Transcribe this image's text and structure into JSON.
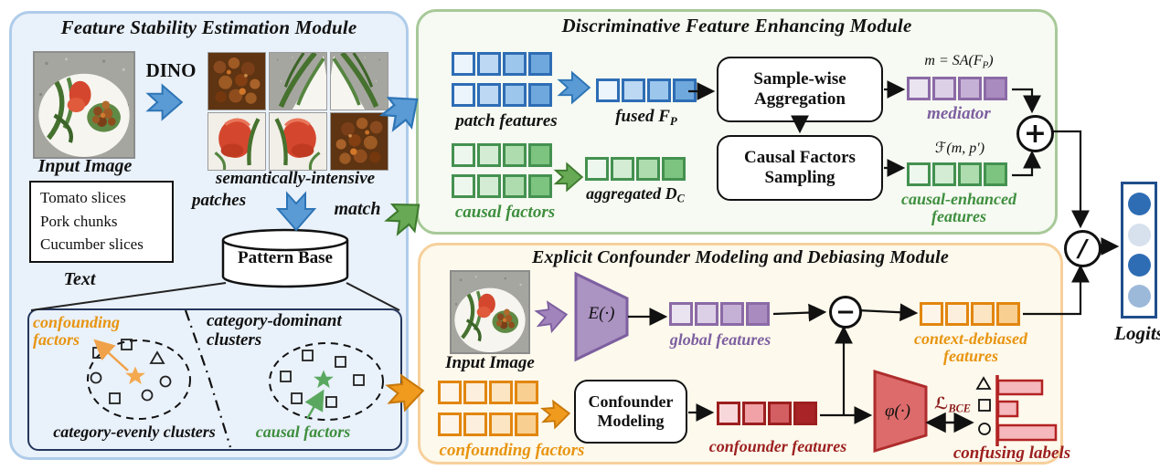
{
  "colors": {
    "module_blue_fill": "#e9f1fa",
    "module_blue_border": "#afccea",
    "module_green_fill": "#f6faf2",
    "module_green_border": "#a8c999",
    "module_cream_fill": "#fdf9ec",
    "module_cream_border": "#f7d09c",
    "arrow_blue": "#5b9bd5",
    "arrow_green": "#67a954",
    "arrow_orange": "#f09a1e",
    "arrow_purple": "#a184bb",
    "label_orange": "#e8940f",
    "label_green": "#3e8e3e",
    "label_purple": "#7d5fa0",
    "label_darkred": "#9c1f1f",
    "bar_fill": "#f5b8bc",
    "bar_border": "#b22222",
    "logits_border": "#1f4e8c"
  },
  "palettes": {
    "blue": {
      "border": "#2e6db5",
      "cells": [
        "#ecf4fc",
        "#bcd8f2",
        "#9cc6ec",
        "#6fa8dc"
      ]
    },
    "green": {
      "border": "#449150",
      "cells": [
        "#eef7ee",
        "#d3ecd3",
        "#aedcae",
        "#7cc47f"
      ]
    },
    "purple": {
      "border": "#8b6aa6",
      "cells": [
        "#eae4f0",
        "#dcd0e6",
        "#c5b1d5",
        "#a98bc0"
      ]
    },
    "orange": {
      "border": "#e2860f",
      "cells": [
        "#fdf5ea",
        "#fcefdd",
        "#fbe5c2",
        "#f8cf90"
      ]
    },
    "red": {
      "border": "#9c1f1f",
      "cells": [
        "#f8d7da",
        "#f0a2a6",
        "#d45f63",
        "#a82427"
      ]
    }
  },
  "logits": {
    "label": "Logits",
    "colors": [
      "#2e6db4",
      "#d7e1ee",
      "#2e6db4",
      "#9db9d9"
    ]
  },
  "operators": {
    "plus": "+",
    "minus": "−",
    "divide": "/"
  },
  "fse": {
    "title": "Feature Stability Estimation Module",
    "input_image_label": "Input Image",
    "dino": "DINO",
    "patches_line1": "semantically-intensive",
    "patches_line2": "patches",
    "match": "match",
    "text_lines": [
      "Tomato slices",
      "Pork chunks",
      "Cucumber slices"
    ],
    "text_caption": "Text",
    "pattern_base": "Pattern Base",
    "confounding_line1": "confounding",
    "confounding_line2": "factors",
    "category_dominant_line1": "category-dominant",
    "category_dominant_line2": "clusters",
    "category_evenly": "category-evenly clusters",
    "causal_factors": "causal factors"
  },
  "dfe": {
    "title": "Discriminative Feature Enhancing Module",
    "patch_features": "patch features",
    "fused_prefix": "fused ",
    "fused_var": "F",
    "fused_sub": "P",
    "sample_box_line1": "Sample-wise",
    "sample_box_line2": "Aggregation",
    "mediator_formula_pre": "m = SA(",
    "mediator_formula_var": "F",
    "mediator_formula_sub": "P",
    "mediator_formula_post": ")",
    "mediator": "mediator",
    "causal_factors": "causal factors",
    "aggregated_prefix": "aggregated ",
    "aggregated_var": "D",
    "aggregated_sub": "C",
    "causal_box_line1": "Causal Factors",
    "causal_box_line2": "Sampling",
    "f_formula": "ℱ(m, p′)",
    "causal_enhanced_line1": "causal-enhanced",
    "causal_enhanced_line2": "features"
  },
  "ecm": {
    "title": "Explicit Confounder Modeling and Debiasing Module",
    "input_image_label": "Input Image",
    "encoder": "E(·)",
    "global_features": "global features",
    "context_debiased_line1": "context-debiased",
    "context_debiased_line2": "features",
    "confounding_factors": "confounding factors",
    "confounder_box_line1": "Confounder",
    "confounder_box_line2": "Modeling",
    "confounder_features": "confounder features",
    "phi": "φ(·)",
    "bce_l": "ℒ",
    "bce_sub": "BCE",
    "confusing_labels": "confusing labels",
    "confusing_bars": [
      48,
      21,
      63
    ]
  }
}
